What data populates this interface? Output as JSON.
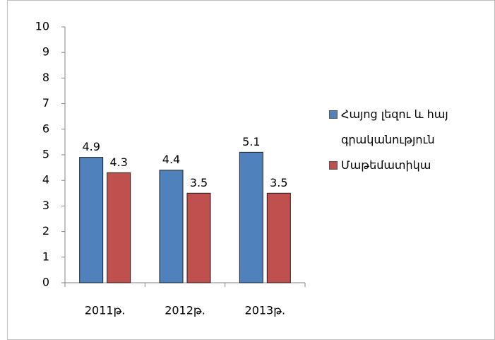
{
  "chart_data": {
    "type": "bar",
    "categories": [
      "2011թ.",
      "2012թ.",
      "2013թ."
    ],
    "series": [
      {
        "name": "Հայոց լեզու և հայ գրականություն",
        "color": "#4f81bd",
        "values": [
          4.9,
          4.4,
          5.1
        ]
      },
      {
        "name": "Մաթեմատիկա",
        "color": "#c0504d",
        "values": [
          4.3,
          3.5,
          3.5
        ]
      }
    ],
    "ylim": [
      0,
      10
    ],
    "yticks": [
      0,
      1,
      2,
      3,
      4,
      5,
      6,
      7,
      8,
      9,
      10
    ],
    "legend": "right"
  }
}
